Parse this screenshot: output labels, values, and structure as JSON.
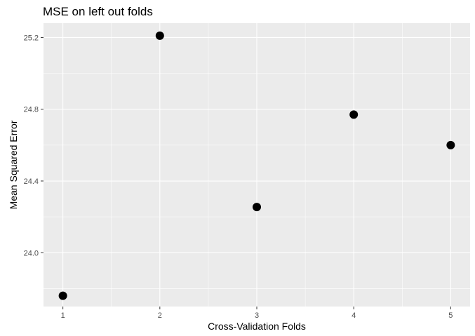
{
  "chart_data": {
    "type": "scatter",
    "title": "MSE on left out folds",
    "xlabel": "Cross-Validation Folds",
    "ylabel": "Mean Squared Error",
    "x": [
      1,
      2,
      3,
      4,
      5
    ],
    "y": [
      23.76,
      25.21,
      24.255,
      24.77,
      24.6
    ],
    "xlim": [
      0.8,
      5.2
    ],
    "ylim": [
      23.7,
      25.28
    ],
    "x_ticks": [
      "1",
      "2",
      "3",
      "4",
      "5"
    ],
    "y_ticks": [
      "24.0",
      "24.4",
      "24.8",
      "25.2"
    ],
    "grid": true,
    "legend": "none",
    "colors": {
      "panel_background": "#ebebeb",
      "grid": "#ffffff",
      "point": "#000000",
      "tick_text": "#4d4d4d"
    }
  }
}
